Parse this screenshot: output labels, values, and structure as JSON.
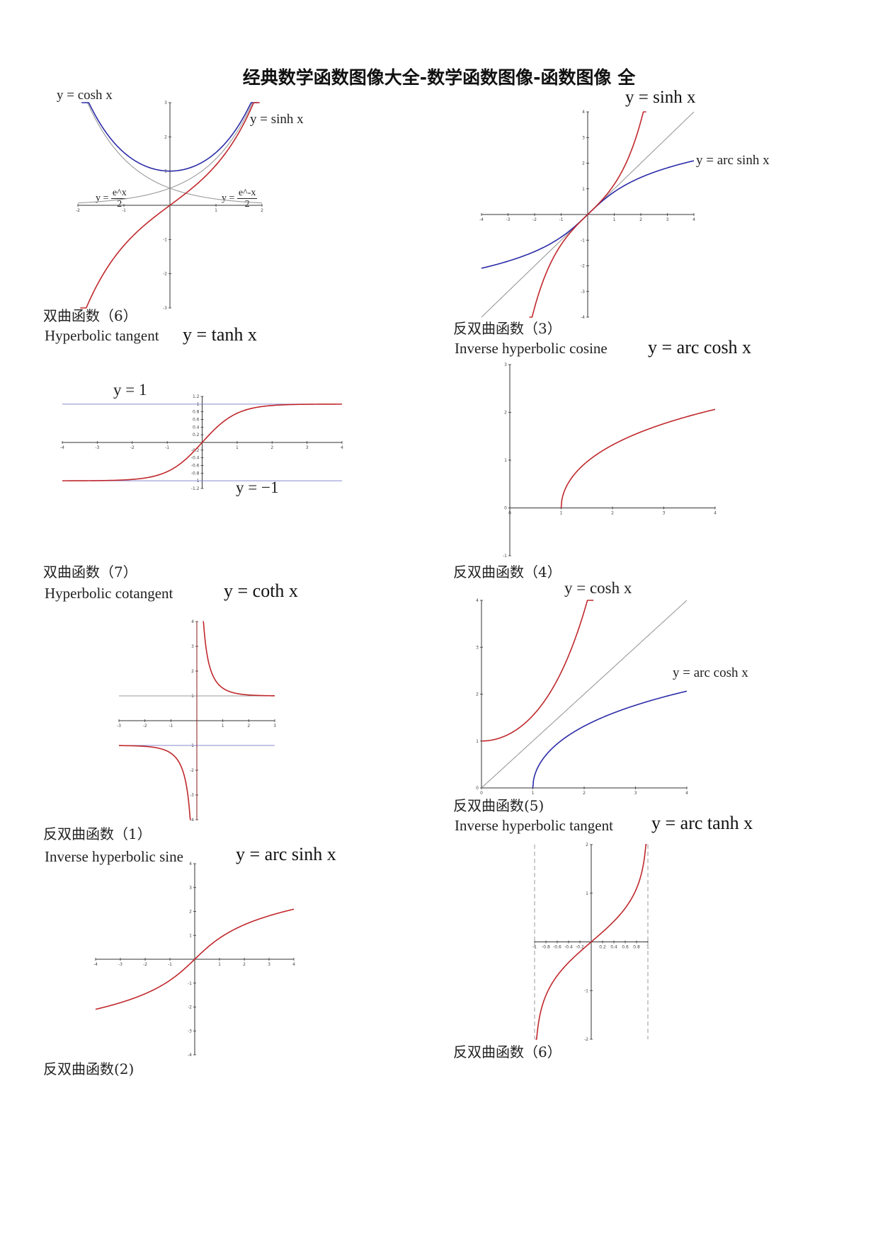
{
  "page_title": "经典数学函数图像大全-数学函数图像-函数图像 全",
  "sections": {
    "hyperbolic_6": {
      "caption": "双曲函数（6）",
      "label_cosh": "y = cosh x",
      "label_sinh": "y = sinh x",
      "label_ex": "e^x",
      "label_emx": "e^-x",
      "label_den": "2",
      "label_y": "y ="
    },
    "tanh": {
      "name": "Hyperbolic tangent",
      "equation": "y = tanh x",
      "label_y1": "y = 1",
      "label_ym1": "y = −1",
      "caption": "双曲函数（7）"
    },
    "coth": {
      "name": "Hyperbolic cotangent",
      "equation": "y = coth x",
      "caption": "反双曲函数（1）"
    },
    "arcsinh": {
      "name": "Inverse hyperbolic sine",
      "equation": "y = arc sinh x",
      "caption": "反双曲函数(2)"
    },
    "inverse_3": {
      "label_sinh": "y = sinh x",
      "label_arcsinh": "y = arc sinh x",
      "caption": "反双曲函数（3）"
    },
    "arccosh": {
      "name": "Inverse hyperbolic cosine",
      "equation": "y = arc cosh x",
      "caption": "反双曲函数（4）"
    },
    "inverse_5": {
      "label_cosh": "y = cosh x",
      "label_arccosh": "y = arc cosh x",
      "caption": "反双曲函数(5)"
    },
    "arctanh": {
      "name": "Inverse hyperbolic tangent",
      "equation": "y = arc tanh x",
      "caption": "反双曲函数（6）"
    }
  },
  "colors": {
    "red_curve": "#c0282c",
    "blue_curve": "#2b2ba8",
    "grey_line": "#9a9a9a",
    "asymptote_blue": "#8a8ad0",
    "axis": "#333333"
  }
}
